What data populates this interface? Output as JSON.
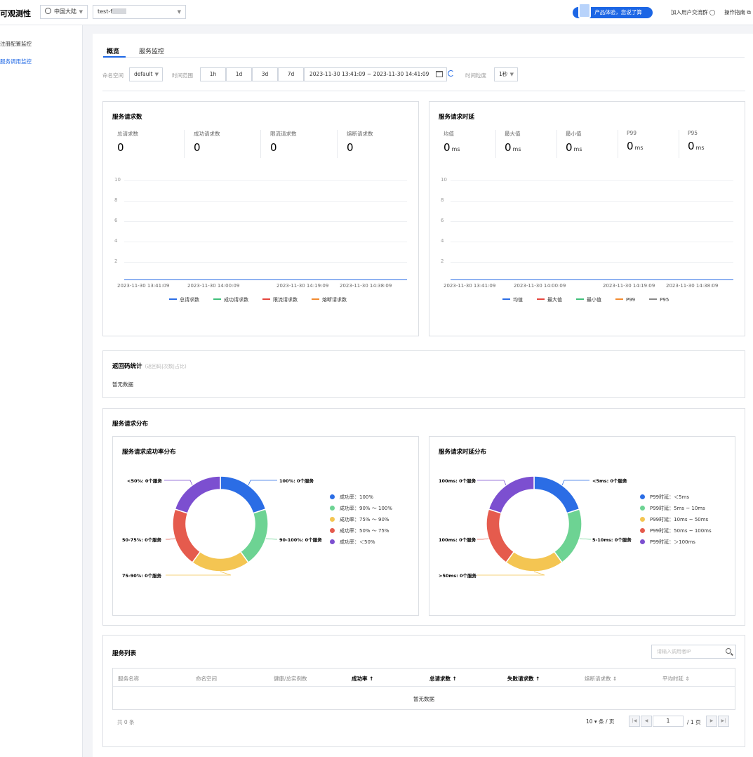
{
  "header": {
    "app_title": "可观测性",
    "region": "中国大陆",
    "instance_prefix": "test-f",
    "promo": "产品体验，您说了算",
    "community": "加入用户交流群",
    "guide": "操作指南"
  },
  "sidebar": {
    "items": [
      {
        "label": "注册配置监控"
      },
      {
        "label": "服务调用监控"
      }
    ]
  },
  "tabs": [
    {
      "label": "概览"
    },
    {
      "label": "服务监控"
    }
  ],
  "filters": {
    "namespace_label": "命名空间",
    "namespace_value": "default",
    "range_label": "时间范围",
    "ranges": [
      "1h",
      "1d",
      "3d",
      "7d"
    ],
    "date_range": "2023-11-30 13:41:09  ~ 2023-11-30 14:41:09",
    "granularity_label": "时间粒度",
    "granularity_value": "1秒"
  },
  "request_panel": {
    "title": "服务请求数",
    "metrics": [
      {
        "label": "总请求数",
        "value": "0"
      },
      {
        "label": "成功请求数",
        "value": "0"
      },
      {
        "label": "限流请求数",
        "value": "0"
      },
      {
        "label": "熔断请求数",
        "value": "0"
      }
    ]
  },
  "latency_panel": {
    "title": "服务请求时延",
    "metrics": [
      {
        "label": "均值",
        "value": "0",
        "unit": "ms"
      },
      {
        "label": "最大值",
        "value": "0",
        "unit": "ms"
      },
      {
        "label": "最小值",
        "value": "0",
        "unit": "ms"
      },
      {
        "label": "P99",
        "value": "0",
        "unit": "ms"
      },
      {
        "label": "P95",
        "value": "0",
        "unit": "ms"
      }
    ]
  },
  "chart_data": [
    {
      "type": "line",
      "yticks": [
        "10",
        "8",
        "6",
        "4",
        "2"
      ],
      "ylim": [
        0,
        10
      ],
      "x_ticks": [
        "2023-11-30 13:41:09",
        "2023-11-30 14:00:09",
        "2023-11-30 14:19:09",
        "2023-11-30 14:38:09"
      ],
      "series": [
        {
          "name": "总请求数",
          "color": "#2b6de5",
          "values": [
            0,
            0,
            0,
            0
          ]
        },
        {
          "name": "成功请求数",
          "color": "#3fc07a",
          "values": [
            0,
            0,
            0,
            0
          ]
        },
        {
          "name": "限流请求数",
          "color": "#e5453d",
          "values": [
            0,
            0,
            0,
            0
          ]
        },
        {
          "name": "熔断请求数",
          "color": "#f28b30",
          "values": [
            0,
            0,
            0,
            0
          ]
        }
      ]
    },
    {
      "type": "line",
      "yticks": [
        "10",
        "8",
        "6",
        "4",
        "2"
      ],
      "ylim": [
        0,
        10
      ],
      "x_ticks": [
        "2023-11-30 13:41:09",
        "2023-11-30 14:00:09",
        "2023-11-30 14:19:09",
        "2023-11-30 14:38:09"
      ],
      "series": [
        {
          "name": "均值",
          "color": "#2b6de5",
          "values": [
            0,
            0,
            0,
            0
          ]
        },
        {
          "name": "最大值",
          "color": "#e5453d",
          "values": [
            0,
            0,
            0,
            0
          ]
        },
        {
          "name": "最小值",
          "color": "#3fc07a",
          "values": [
            0,
            0,
            0,
            0
          ]
        },
        {
          "name": "P99",
          "color": "#f28b30",
          "values": [
            0,
            0,
            0,
            0
          ]
        },
        {
          "name": "P95",
          "color": "#888888",
          "values": [
            0,
            0,
            0,
            0
          ]
        }
      ]
    },
    {
      "type": "pie",
      "title": "服务请求成功率分布",
      "labels": [
        "100%: 0个服务",
        "90-100%: 0个服务",
        "75-90%: 0个服务",
        "50-75%: 0个服务",
        "<50%: 0个服务"
      ],
      "legend": [
        "成功率：100%",
        "成功率：90% ～ 100%",
        "成功率：75% ～ 90%",
        "成功率：50% ～ 75%",
        "成功率：＜50%"
      ],
      "values": [
        0,
        0,
        0,
        0,
        0
      ],
      "colors": [
        "#2b6de5",
        "#6dd393",
        "#f4c552",
        "#e55b4d",
        "#7c4fd0"
      ]
    },
    {
      "type": "pie",
      "title": "服务请求时延分布",
      "labels": [
        "<5ms: 0个服务",
        "5-10ms: 0个服务",
        ">50ms: 0个服务",
        "100ms: 0个服务",
        "100ms: 0个服务"
      ],
      "legend": [
        "P99时延：＜5ms",
        "P99时延：5ms ~ 10ms",
        "P99时延：10ms ~ 50ms",
        "P99时延：50ms ~ 100ms",
        "P99时延：＞100ms"
      ],
      "values": [
        0,
        0,
        0,
        0,
        0
      ],
      "colors": [
        "#2b6de5",
        "#6dd393",
        "#f4c552",
        "#e55b4d",
        "#7c4fd0"
      ]
    }
  ],
  "return_code": {
    "title": "返回码统计",
    "subtitle": "(返回码|次数|占比)",
    "empty": "暂无数据"
  },
  "distribution": {
    "title": "服务请求分布"
  },
  "service_list": {
    "title": "服务列表",
    "search_placeholder": "请输入调用者IP",
    "columns": [
      "服务名称",
      "命名空间",
      "健康/总实例数",
      "成功率 ↑",
      "总请求数 ↑",
      "失败请求数 ↑",
      "熔断请求数 ⇕",
      "平均时延 ⇕"
    ],
    "empty": "暂无数据",
    "total": "共 0 条",
    "page_size": "10 ▾ 条 / 页",
    "page": "1",
    "page_total": "/ 1 页"
  }
}
